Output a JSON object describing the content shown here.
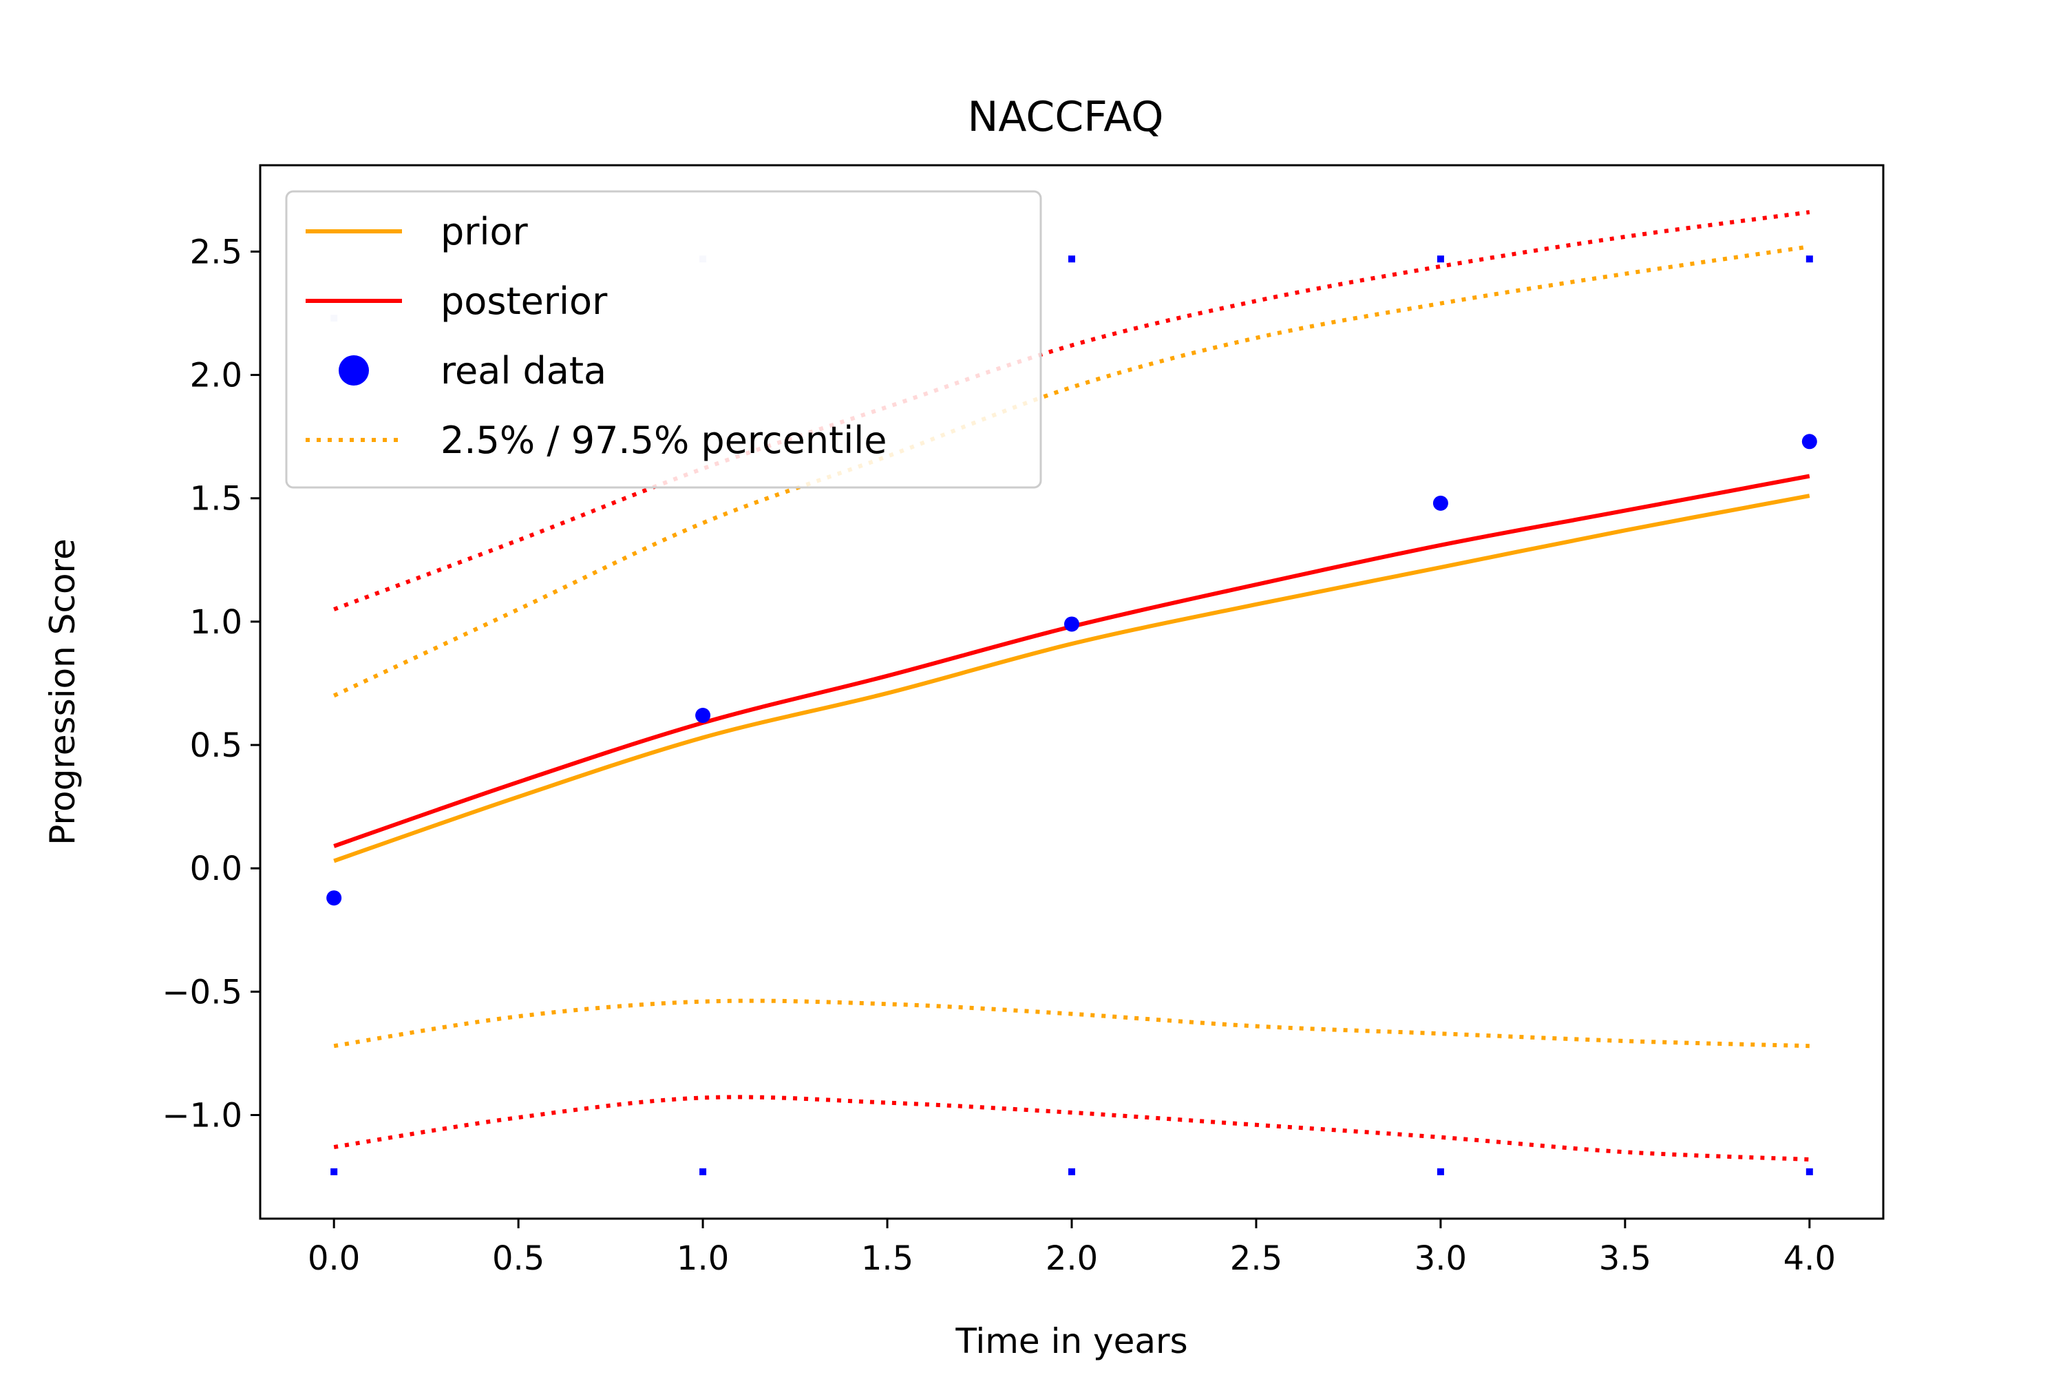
{
  "chart_data": {
    "type": "line",
    "title": "NACCFAQ",
    "xlabel": "Time in years",
    "ylabel": "Progression Score",
    "xlim": [
      -0.2,
      4.2
    ],
    "ylim": [
      -1.42,
      2.85
    ],
    "xticks": [
      0.0,
      0.5,
      1.0,
      1.5,
      2.0,
      2.5,
      3.0,
      3.5,
      4.0
    ],
    "xtick_labels": [
      "0.0",
      "0.5",
      "1.0",
      "1.5",
      "2.0",
      "2.5",
      "3.0",
      "3.5",
      "4.0"
    ],
    "yticks": [
      -1.0,
      -0.5,
      0.0,
      0.5,
      1.0,
      1.5,
      2.0,
      2.5
    ],
    "ytick_labels": [
      "−1.0",
      "−0.5",
      "0.0",
      "0.5",
      "1.0",
      "1.5",
      "2.0",
      "2.5"
    ],
    "grid": false,
    "legend_position": "top-left",
    "legend": [
      {
        "label": "prior",
        "color": "#ffa500",
        "style": "solid"
      },
      {
        "label": "posterior",
        "color": "#ff0000",
        "style": "solid"
      },
      {
        "label": "real data",
        "color": "#0000ff",
        "style": "marker"
      },
      {
        "label": "2.5% / 97.5% percentile",
        "color": "#ffa500",
        "style": "dotted"
      }
    ],
    "series": [
      {
        "name": "prior",
        "color": "#ffa500",
        "style": "solid",
        "x": [
          0,
          0.5,
          1.0,
          1.5,
          2.0,
          2.5,
          3.0,
          3.5,
          4.0
        ],
        "y": [
          0.03,
          0.29,
          0.53,
          0.71,
          0.91,
          1.07,
          1.22,
          1.37,
          1.51
        ]
      },
      {
        "name": "posterior",
        "color": "#ff0000",
        "style": "solid",
        "x": [
          0,
          0.5,
          1.0,
          1.5,
          2.0,
          2.5,
          3.0,
          3.5,
          4.0
        ],
        "y": [
          0.09,
          0.35,
          0.59,
          0.78,
          0.98,
          1.15,
          1.31,
          1.45,
          1.59
        ]
      },
      {
        "name": "prior 2.5% / 97.5% percentile",
        "color": "#ffa500",
        "style": "dotted",
        "x": [
          0,
          0.5,
          1.0,
          1.5,
          2.0,
          2.5,
          3.0,
          3.5,
          4.0
        ],
        "y_upper": [
          0.7,
          1.05,
          1.4,
          1.67,
          1.95,
          2.15,
          2.29,
          2.41,
          2.52
        ],
        "y_lower": [
          -0.72,
          -0.6,
          -0.54,
          -0.55,
          -0.59,
          -0.64,
          -0.67,
          -0.7,
          -0.72
        ]
      },
      {
        "name": "posterior 2.5% / 97.5% percentile",
        "color": "#ff0000",
        "style": "dotted",
        "x": [
          0,
          0.5,
          1.0,
          1.5,
          2.0,
          2.5,
          3.0,
          3.5,
          4.0
        ],
        "y_upper": [
          1.05,
          1.33,
          1.62,
          1.87,
          2.12,
          2.3,
          2.44,
          2.56,
          2.66
        ],
        "y_lower": [
          -1.13,
          -1.01,
          -0.93,
          -0.95,
          -0.99,
          -1.04,
          -1.09,
          -1.15,
          -1.18
        ]
      },
      {
        "name": "real data",
        "color": "#0000ff",
        "style": "marker",
        "x": [
          0,
          1,
          2,
          3,
          4
        ],
        "y": [
          -0.12,
          0.62,
          0.99,
          1.48,
          1.73
        ]
      }
    ],
    "small_markers": [
      {
        "x": 0,
        "y": 2.23,
        "color": "#c8d0f0"
      },
      {
        "x": 1,
        "y": 2.47,
        "color": "#c8d0f0"
      },
      {
        "x": 2,
        "y": 2.47,
        "color": "#0000ff"
      },
      {
        "x": 3,
        "y": 2.47,
        "color": "#0000ff"
      },
      {
        "x": 4,
        "y": 2.47,
        "color": "#0000ff"
      },
      {
        "x": 0,
        "y": -1.23,
        "color": "#0000ff"
      },
      {
        "x": 1,
        "y": -1.23,
        "color": "#0000ff"
      },
      {
        "x": 2,
        "y": -1.23,
        "color": "#0000ff"
      },
      {
        "x": 3,
        "y": -1.23,
        "color": "#0000ff"
      },
      {
        "x": 4,
        "y": -1.23,
        "color": "#0000ff"
      }
    ]
  }
}
